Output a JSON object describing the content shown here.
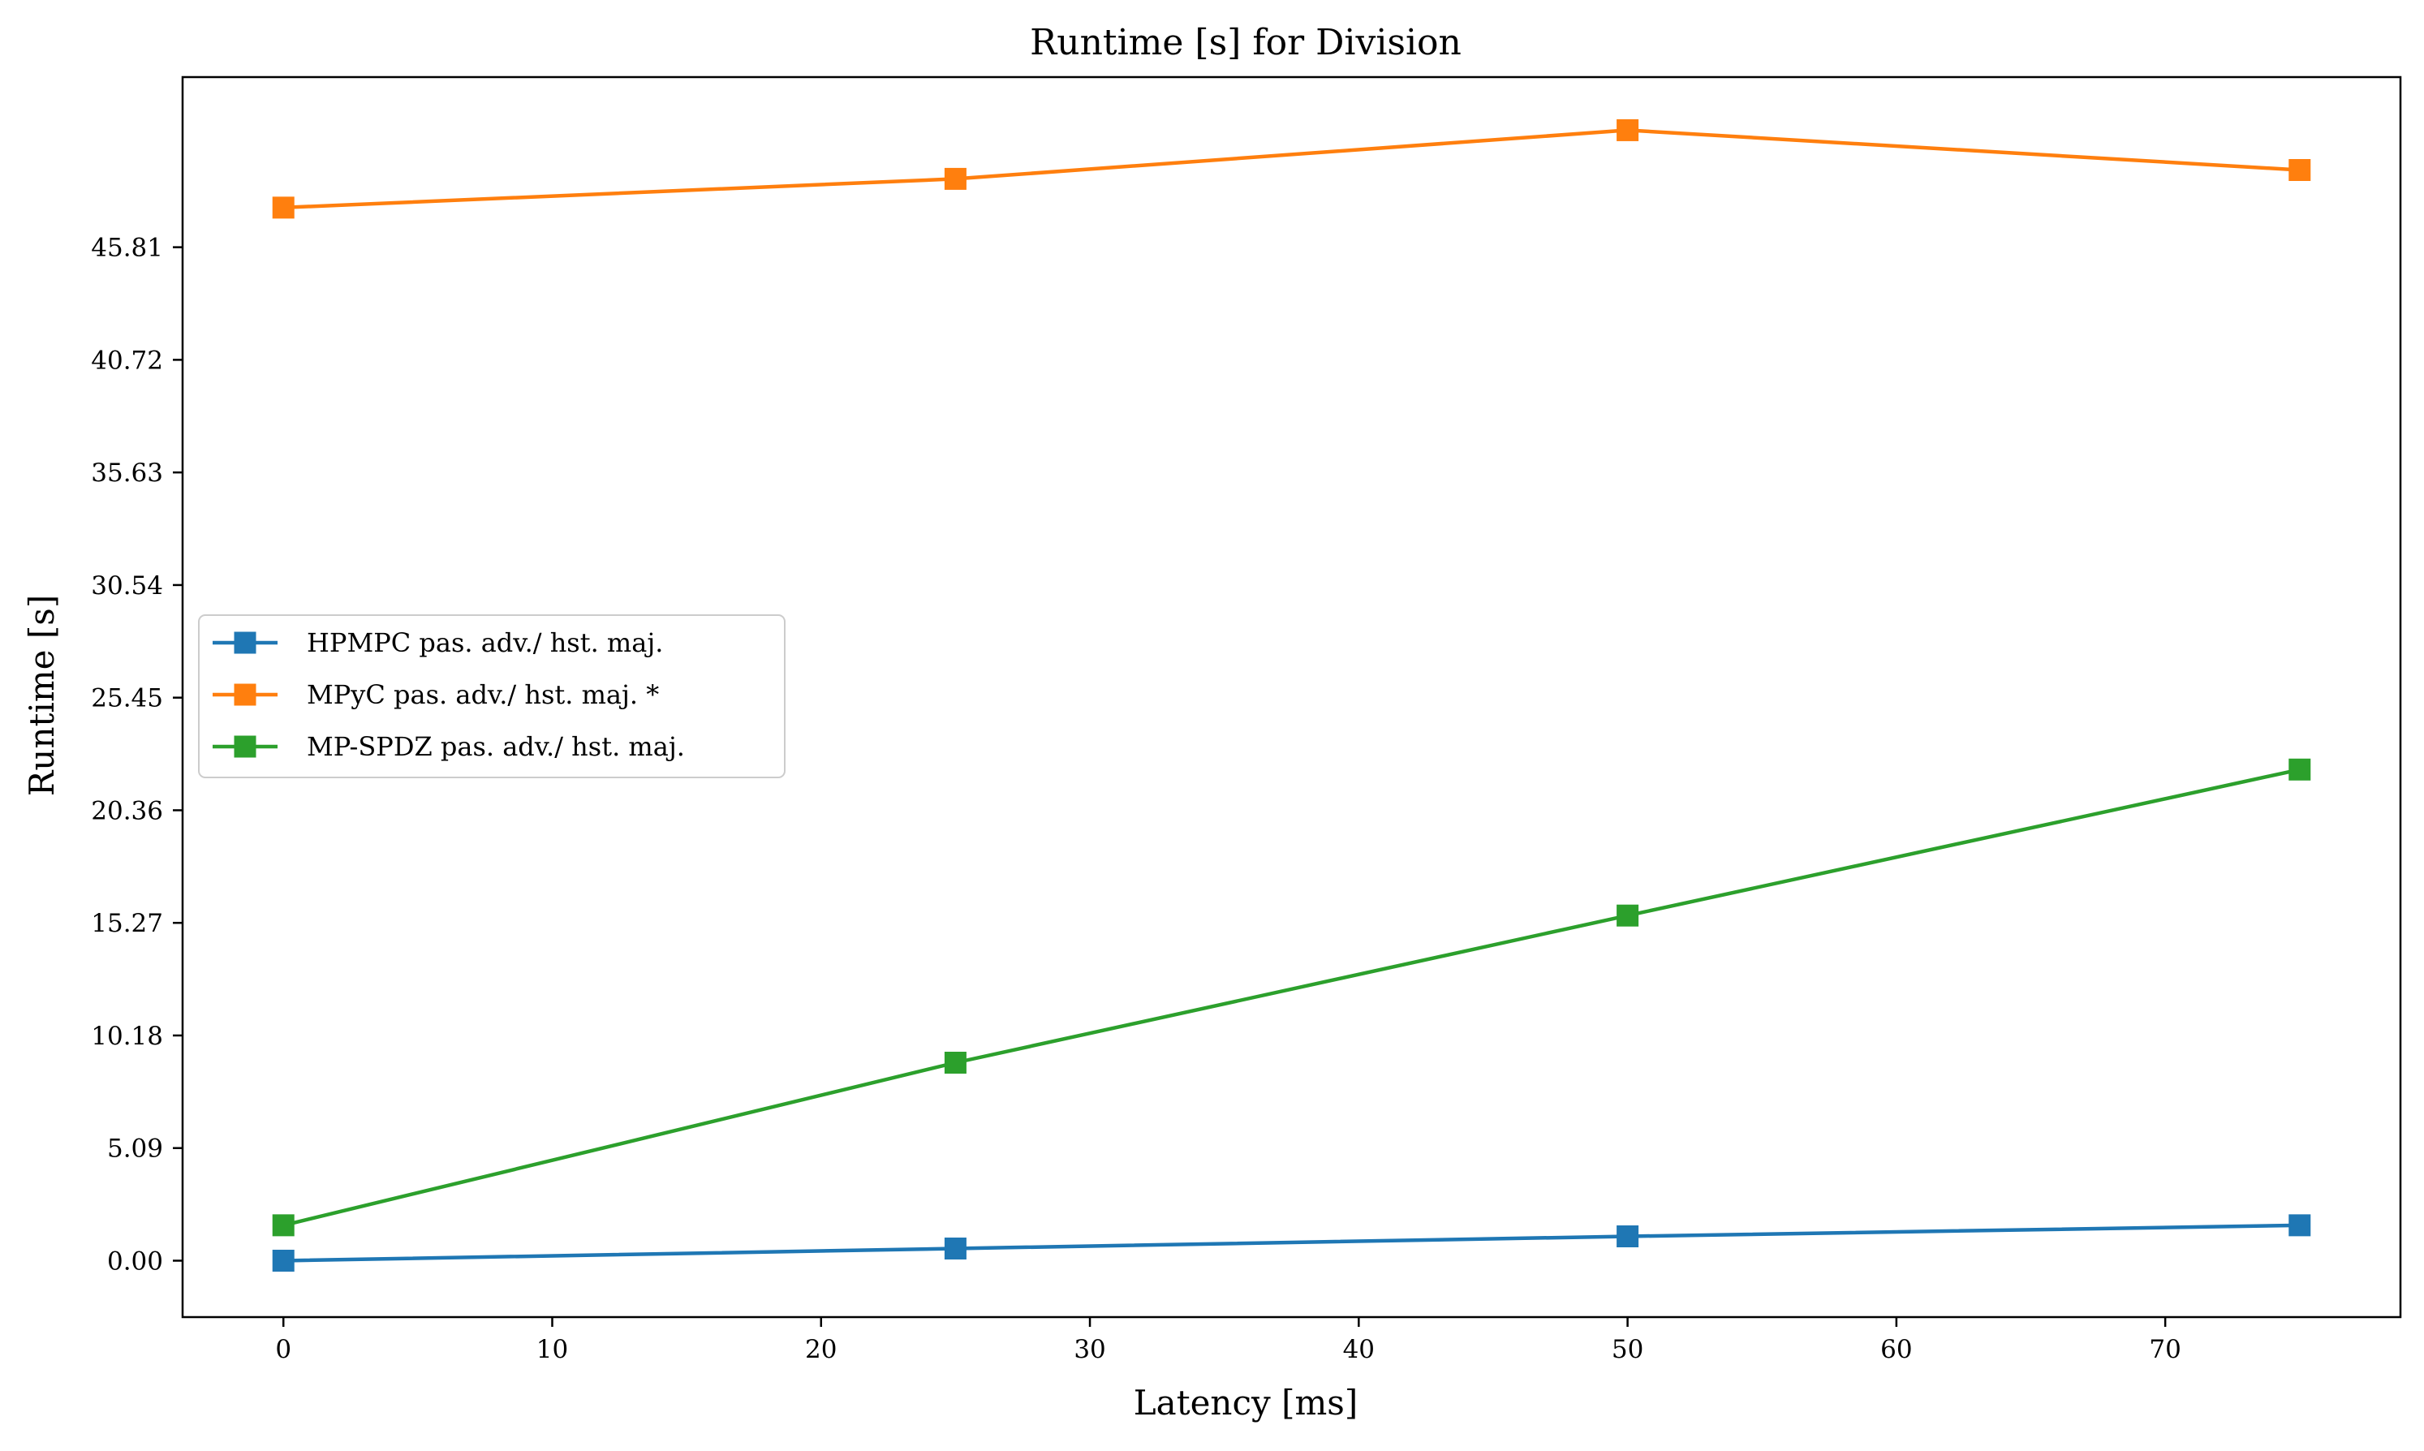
{
  "chart_data": {
    "type": "line",
    "title": "Runtime [s] for Division",
    "xlabel": "Latency [ms]",
    "ylabel": "Runtime [s]",
    "x": [
      0,
      25,
      50,
      75
    ],
    "xticks": [
      0,
      10,
      20,
      30,
      40,
      50,
      60,
      70
    ],
    "xlim": [
      -3.75,
      78.75
    ],
    "yticks": [
      0.0,
      5.09,
      10.18,
      15.27,
      20.36,
      25.45,
      30.54,
      35.63,
      40.72,
      45.81
    ],
    "ytick_labels": [
      "0.00",
      "5.09",
      "10.18",
      "15.27",
      "20.36",
      "25.45",
      "30.54",
      "35.63",
      "40.72",
      "45.81"
    ],
    "ylim": [
      -2.55,
      53.5
    ],
    "marker": "square",
    "grid": false,
    "legend_position": "center-left",
    "series": [
      {
        "name": "HPMPC pas. adv./ hst. maj.",
        "color": "#1f77b4",
        "values": [
          0.0,
          0.55,
          1.1,
          1.6
        ]
      },
      {
        "name": "MPyC pas. adv./ hst. maj. *",
        "color": "#ff7f0e",
        "values": [
          47.6,
          48.9,
          51.1,
          49.3
        ]
      },
      {
        "name": "MP-SPDZ pas. adv./ hst. maj.",
        "color": "#2ca02c",
        "values": [
          1.6,
          8.95,
          15.6,
          22.2
        ]
      }
    ]
  }
}
